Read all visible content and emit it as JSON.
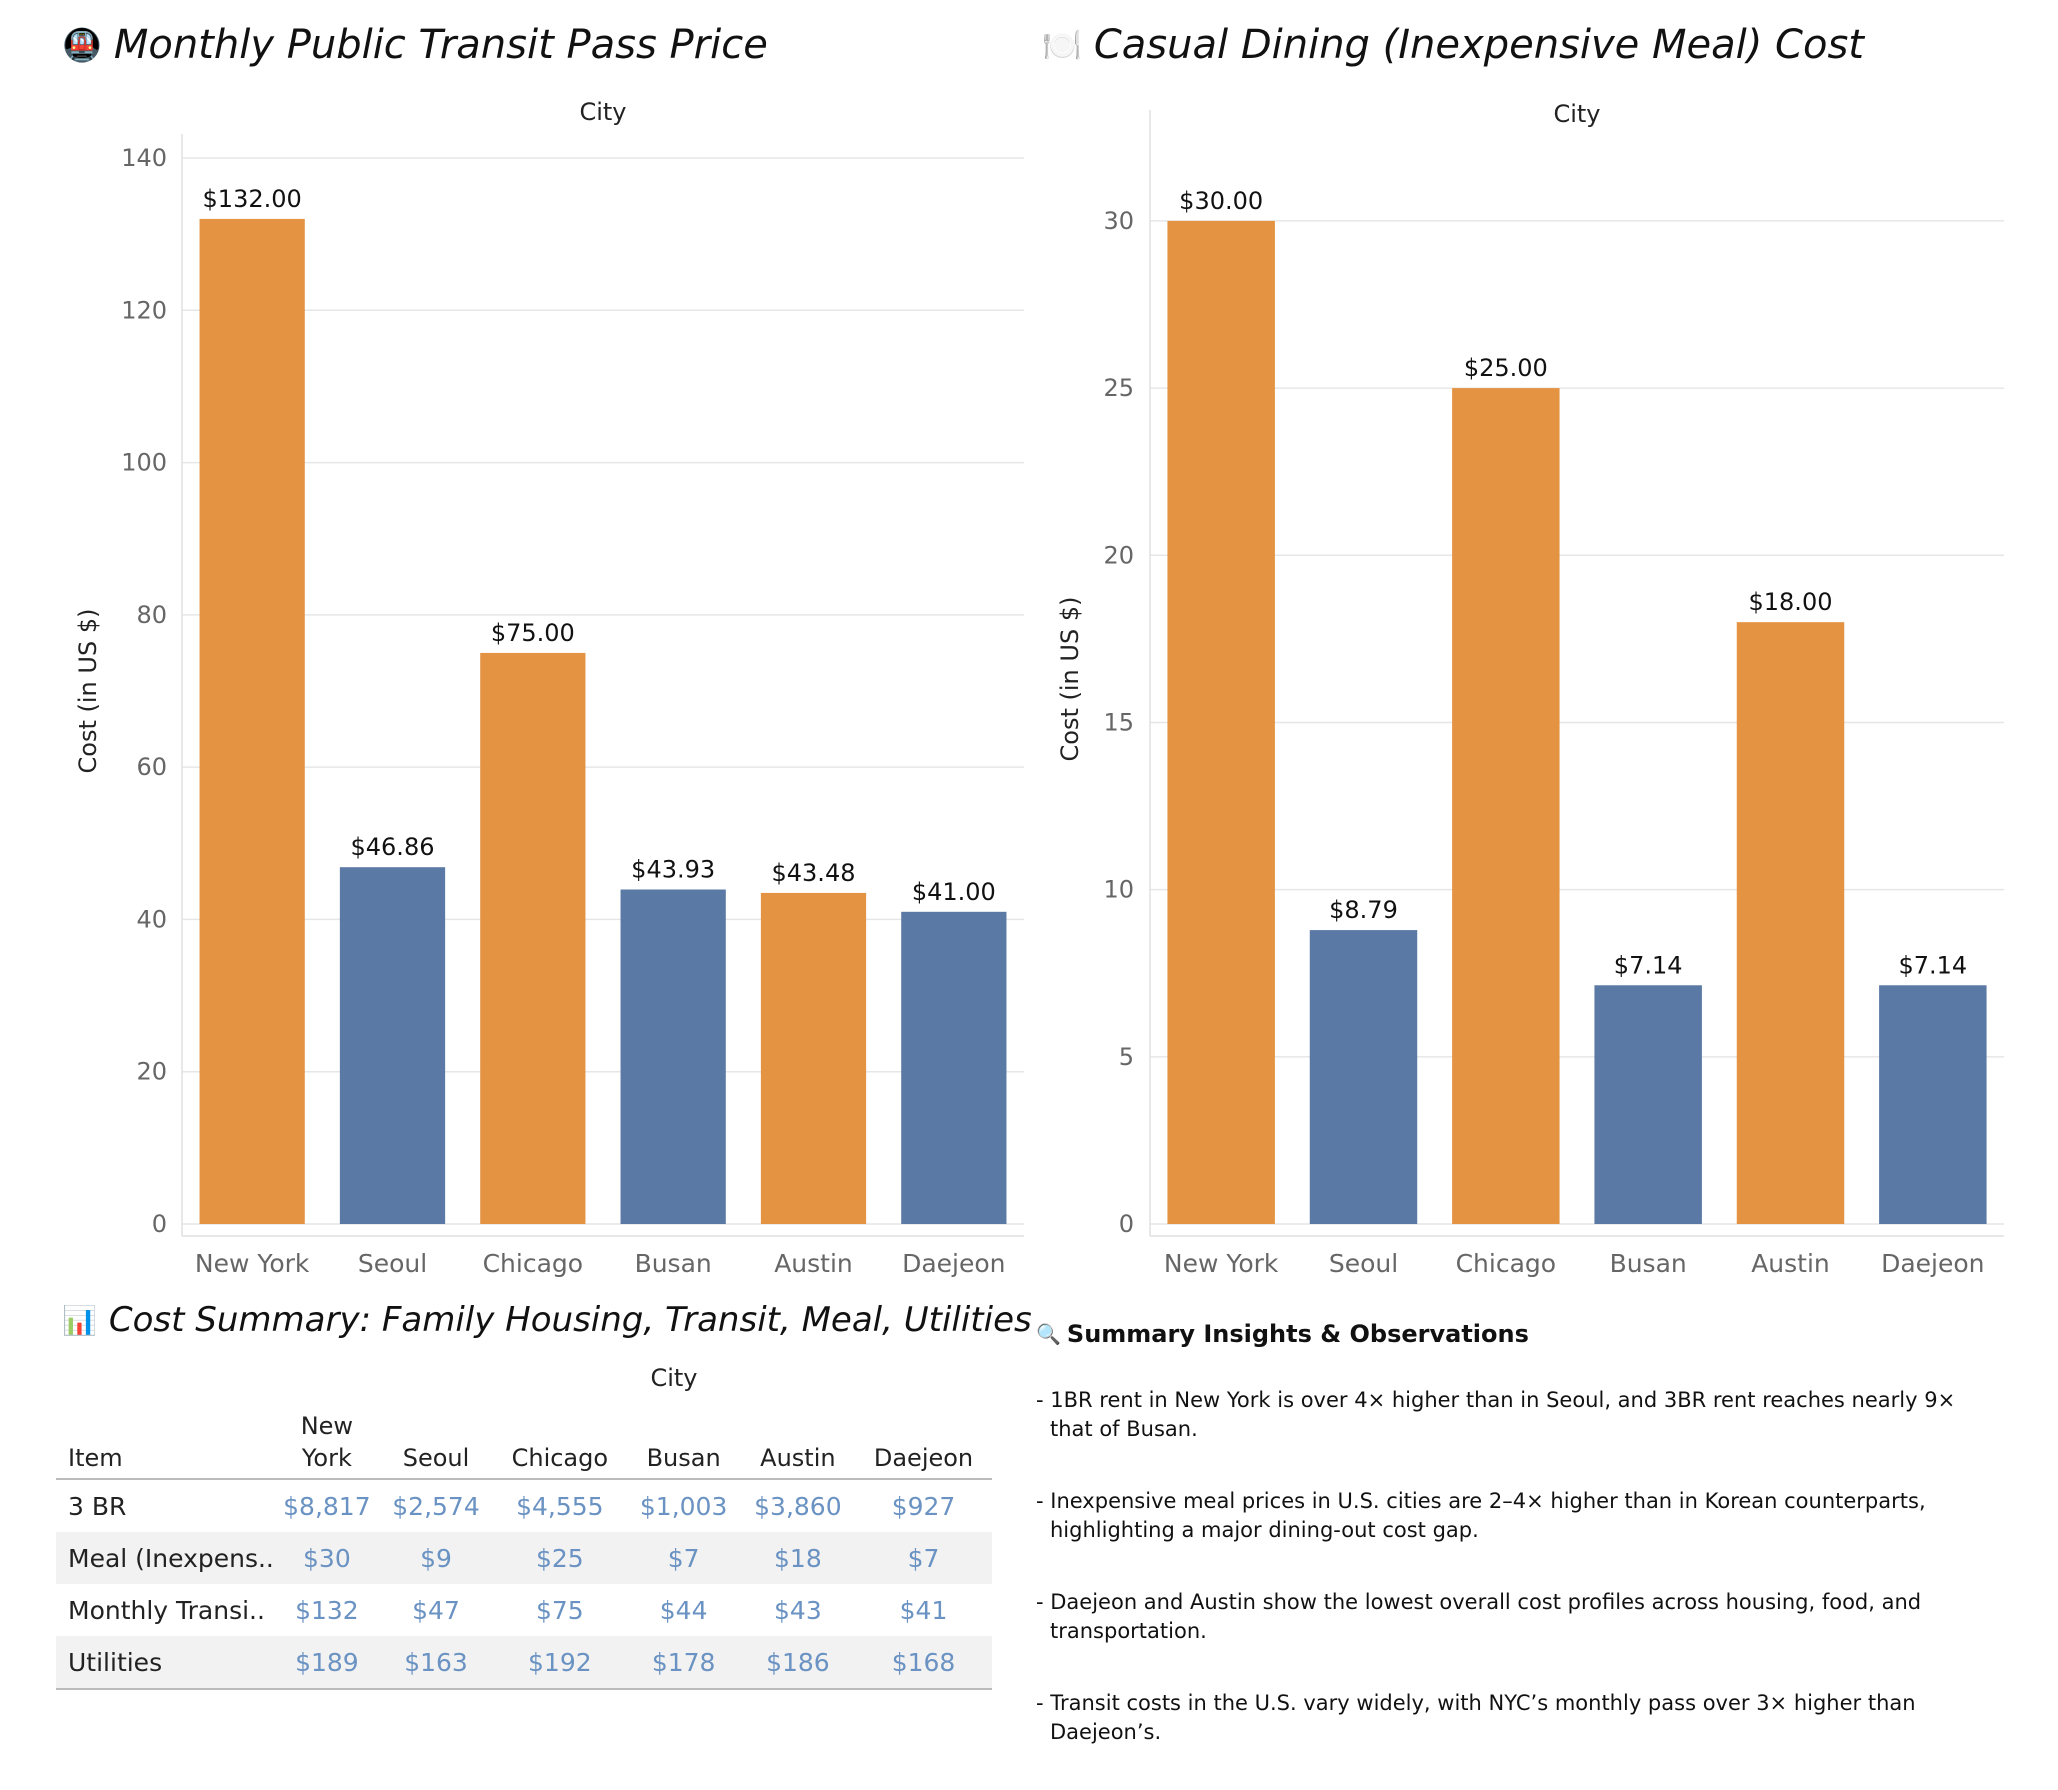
{
  "panels": {
    "transit_title": "Monthly Public Transit Pass Price",
    "transit_icon": "🚇",
    "dining_title": "Casual Dining (Inexpensive Meal) Cost",
    "dining_icon": "🍽️",
    "summary_title": "Cost Summary: Family Housing, Transit, Meal, Utilities",
    "summary_icon": "📊",
    "insights_title": "Summary Insights & Observations",
    "insights_icon": "🔍"
  },
  "colors": {
    "us": "#e39342",
    "korea": "#5a79a5",
    "table_value": "#6a92c2"
  },
  "chart_data": [
    {
      "type": "bar",
      "title": "Monthly Public Transit Pass Price",
      "xlabel": "City",
      "ylabel": "Cost (in US $)",
      "categories": [
        "New York",
        "Seoul",
        "Chicago",
        "Busan",
        "Austin",
        "Daejeon"
      ],
      "values": [
        132.0,
        46.86,
        75.0,
        43.93,
        43.48,
        41.0
      ],
      "value_labels": [
        "$132.00",
        "$46.86",
        "$75.00",
        "$43.93",
        "$43.48",
        "$41.00"
      ],
      "color_group": [
        "us",
        "korea",
        "us",
        "korea",
        "us",
        "korea"
      ],
      "ylim": [
        0,
        140
      ],
      "yticks": [
        0,
        20,
        40,
        60,
        80,
        100,
        120,
        140
      ],
      "grid": true
    },
    {
      "type": "bar",
      "title": "Casual Dining (Inexpensive Meal) Cost",
      "xlabel": "City",
      "ylabel": "Cost (in US $)",
      "categories": [
        "New York",
        "Seoul",
        "Chicago",
        "Busan",
        "Austin",
        "Daejeon"
      ],
      "values": [
        30.0,
        8.79,
        25.0,
        7.14,
        18.0,
        7.14
      ],
      "value_labels": [
        "$30.00",
        "$8.79",
        "$25.00",
        "$7.14",
        "$18.00",
        "$7.14"
      ],
      "color_group": [
        "us",
        "korea",
        "us",
        "korea",
        "us",
        "korea"
      ],
      "ylim": [
        0,
        32.6
      ],
      "yticks": [
        0,
        5,
        10,
        15,
        20,
        25,
        30
      ],
      "grid": true
    },
    {
      "type": "table",
      "title": "Cost Summary: Family Housing, Transit, Meal, Utilities",
      "column_group": "City",
      "row_header": "Item",
      "columns": [
        "New York",
        "Seoul",
        "Chicago",
        "Busan",
        "Austin",
        "Daejeon"
      ],
      "rows": [
        {
          "item": "3 BR",
          "values": [
            "$8,817",
            "$2,574",
            "$4,555",
            "$1,003",
            "$3,860",
            "$927"
          ]
        },
        {
          "item": "Meal (Inexpens..",
          "values": [
            "$30",
            "$9",
            "$25",
            "$7",
            "$18",
            "$7"
          ]
        },
        {
          "item": "Monthly Transi..",
          "values": [
            "$132",
            "$47",
            "$75",
            "$44",
            "$43",
            "$41"
          ]
        },
        {
          "item": "Utilities",
          "values": [
            "$189",
            "$163",
            "$192",
            "$178",
            "$186",
            "$168"
          ]
        }
      ]
    }
  ],
  "insights": [
    "- 1BR rent in New York is over 4× higher than in Seoul, and 3BR rent reaches nearly 9× that of Busan.",
    "- Inexpensive meal prices in U.S. cities are 2–4× higher than in Korean counterparts, highlighting a major dining-out cost gap.",
    "- Daejeon and Austin show the lowest overall cost profiles across housing, food, and transportation.",
    "- Transit costs in the U.S. vary widely, with NYC’s monthly pass over 3× higher than Daejeon’s."
  ]
}
